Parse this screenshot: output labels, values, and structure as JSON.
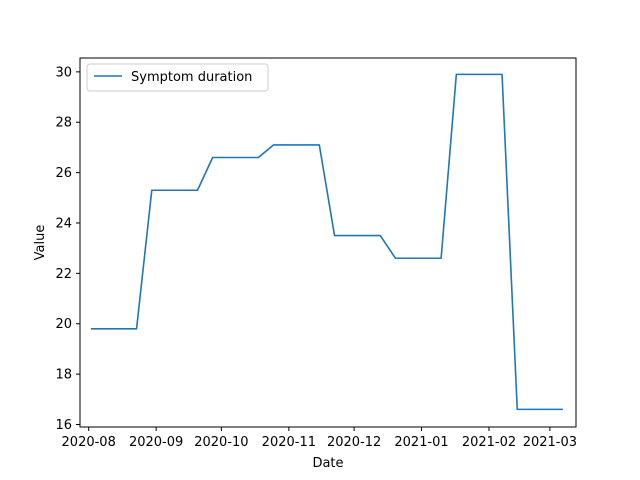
{
  "chart_data": {
    "type": "line",
    "xlabel": "Date",
    "ylabel": "Value",
    "ylim": [
      15.9,
      30.55
    ],
    "xlim": [
      "2020-07-28",
      "2021-03-13"
    ],
    "grid": false,
    "legend_position": "top-left",
    "x_ticks": [
      "2020-08",
      "2020-09",
      "2020-10",
      "2020-11",
      "2020-12",
      "2021-01",
      "2021-02",
      "2021-03"
    ],
    "x_tick_dates": [
      "2020-08-01",
      "2020-09-01",
      "2020-10-01",
      "2020-11-01",
      "2020-12-01",
      "2021-01-01",
      "2021-02-01",
      "2021-03-01"
    ],
    "y_ticks": [
      16,
      18,
      20,
      22,
      24,
      26,
      28,
      30
    ],
    "series": [
      {
        "name": "Symptom duration",
        "color": "#1f77b4",
        "points": [
          {
            "x": "2020-08-02",
            "y": 19.8
          },
          {
            "x": "2020-08-23",
            "y": 19.8
          },
          {
            "x": "2020-08-30",
            "y": 25.3
          },
          {
            "x": "2020-09-20",
            "y": 25.3
          },
          {
            "x": "2020-09-27",
            "y": 26.6
          },
          {
            "x": "2020-10-18",
            "y": 26.6
          },
          {
            "x": "2020-10-25",
            "y": 27.1
          },
          {
            "x": "2020-11-15",
            "y": 27.1
          },
          {
            "x": "2020-11-22",
            "y": 23.5
          },
          {
            "x": "2020-12-13",
            "y": 23.5
          },
          {
            "x": "2020-12-20",
            "y": 22.6
          },
          {
            "x": "2021-01-10",
            "y": 22.6
          },
          {
            "x": "2021-01-17",
            "y": 29.9
          },
          {
            "x": "2021-02-07",
            "y": 29.9
          },
          {
            "x": "2021-02-14",
            "y": 16.6
          },
          {
            "x": "2021-03-07",
            "y": 16.6
          }
        ]
      }
    ]
  }
}
